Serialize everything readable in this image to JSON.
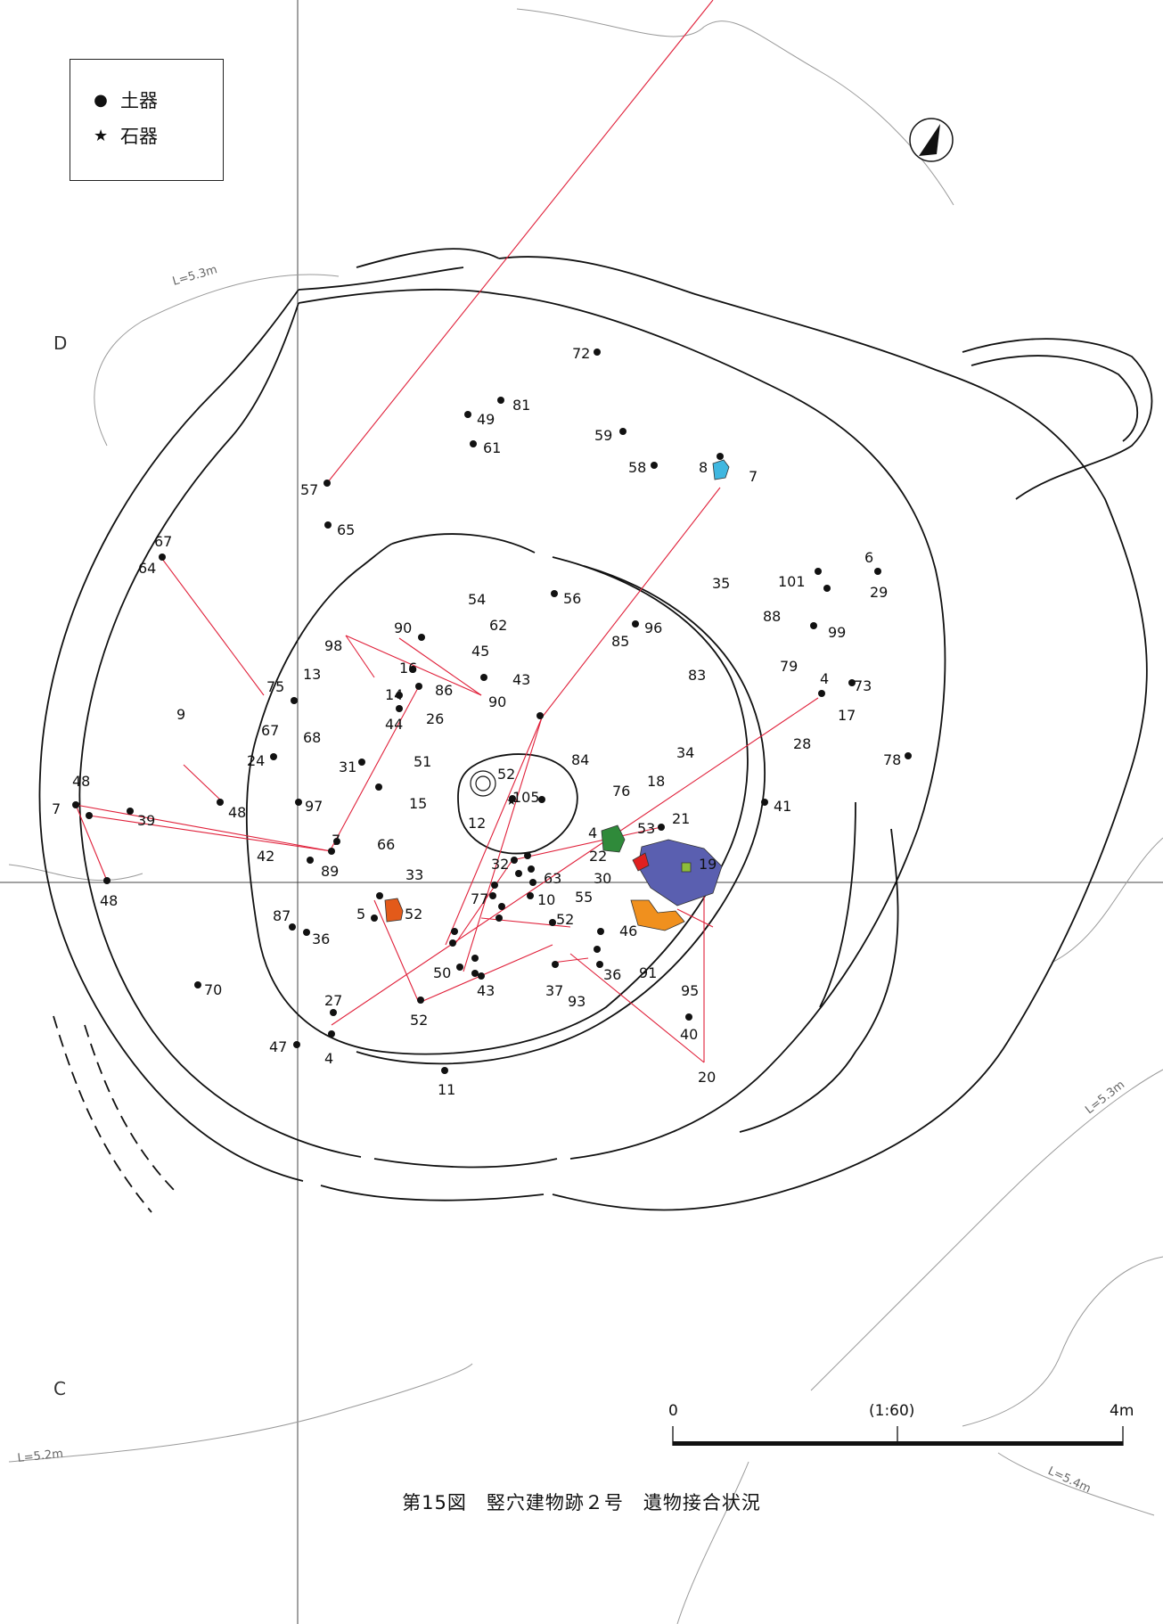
{
  "legend": {
    "pottery_symbol": "●",
    "pottery_label": "土器",
    "stone_symbol": "★",
    "stone_label": "石器"
  },
  "grid_labels": {
    "d": "D",
    "c": "C"
  },
  "contour_labels": [
    "L=5.3m",
    "L=5.3m",
    "L=5.2m",
    "L=5.4m"
  ],
  "scale": {
    "start": "0",
    "ratio": "(1:60)",
    "end": "4m"
  },
  "caption": "第15図　竪穴建物跡２号　遺物接合状況",
  "colors": {
    "join_line": "#e0203a",
    "blue_fragment": "#3fb7e0",
    "green_fragment": "#2f8a3a",
    "purple_fragment": "#5a5fb0",
    "orange_fragment": "#f0901e",
    "red_fragment": "#e02020",
    "orange_red_fragment": "#e35a1a"
  },
  "artifact_numbers": [
    "72",
    "81",
    "49",
    "61",
    "59",
    "58",
    "8",
    "7",
    "57",
    "65",
    "67",
    "64",
    "54",
    "62",
    "56",
    "96",
    "35",
    "88",
    "101",
    "6",
    "29",
    "99",
    "98",
    "90",
    "45",
    "43",
    "85",
    "83",
    "79",
    "4",
    "73",
    "17",
    "13",
    "16",
    "86",
    "14",
    "26",
    "75",
    "90",
    "67",
    "44",
    "68",
    "9",
    "31",
    "51",
    "28",
    "34",
    "84",
    "76",
    "24",
    "7",
    "48",
    "39",
    "48",
    "52",
    "105",
    "15",
    "12",
    "18",
    "78",
    "41",
    "97",
    "21",
    "53",
    "4",
    "22",
    "19",
    "42",
    "89",
    "66",
    "33",
    "32",
    "63",
    "30",
    "10",
    "55",
    "5",
    "52",
    "77",
    "52",
    "46",
    "87",
    "36",
    "50",
    "43",
    "37",
    "93",
    "36",
    "91",
    "70",
    "95",
    "27",
    "52",
    "40",
    "47",
    "4",
    "20",
    "11",
    "48",
    "7"
  ]
}
